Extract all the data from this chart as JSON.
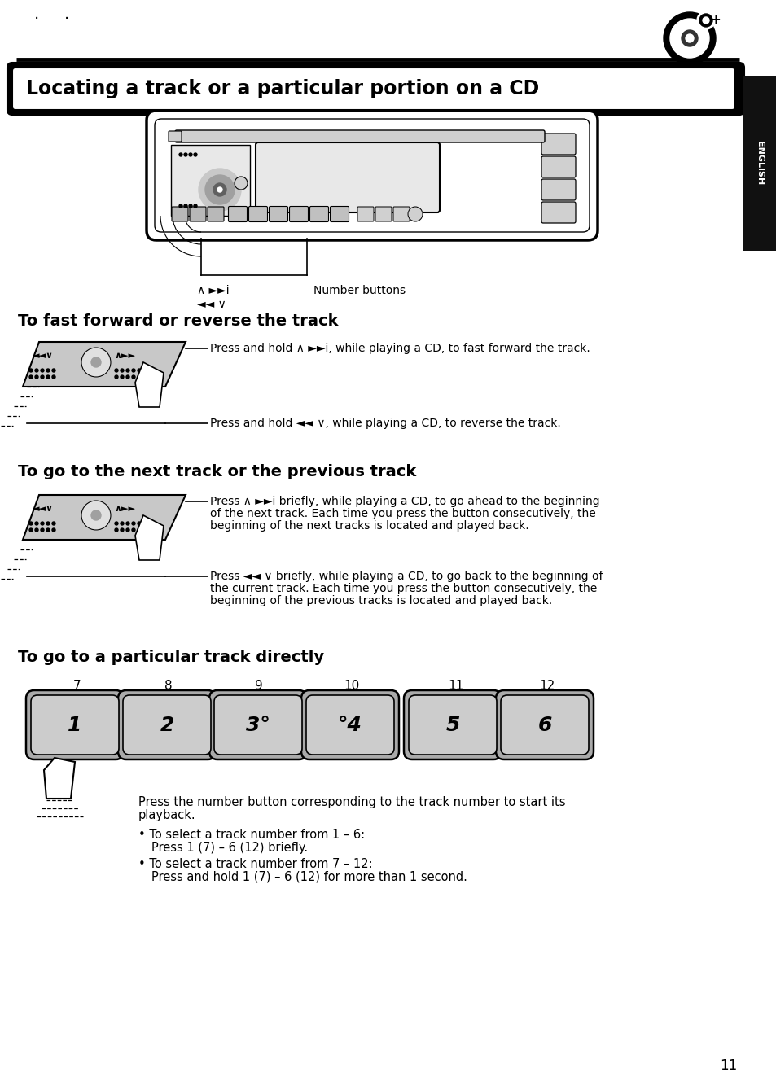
{
  "title": "Locating a track or a particular portion on a CD",
  "background_color": "#ffffff",
  "page_number": "11",
  "section1_title": "To fast forward or reverse the track",
  "section2_title": "To go to the next track or the previous track",
  "section3_title": "To go to a particular track directly",
  "legend_sym1": "∧ ►►i",
  "legend_label": "Number buttons",
  "legend_sym2": "◄◄ ∨",
  "ff_text": "Press and hold ∧ ►►i, while playing a CD, to fast forward the track.",
  "rev_text": "Press and hold ◄◄ ∨, while playing a CD, to reverse the track.",
  "next_text": [
    "Press ∧ ►►i briefly, while playing a CD, to go ahead to the beginning",
    "of the next track. Each time you press the button consecutively, the",
    "beginning of the next tracks is located and played back."
  ],
  "prev_text": [
    "Press ◄◄ ∨ briefly, while playing a CD, to go back to the beginning of",
    "the current track. Each time you press the button consecutively, the",
    "beginning of the previous tracks is located and played back."
  ],
  "button_numbers": [
    "7",
    "8",
    "9",
    "10",
    "11",
    "12"
  ],
  "button_labels": [
    "1",
    "2",
    "3°",
    "°4",
    "5",
    "6"
  ],
  "press_text1": "Press the number button corresponding to the track number to start its",
  "press_text2": "playback.",
  "bullet1_title": "To select a track number from 1 – 6:",
  "bullet1_text": "Press 1 (7) – 6 (12) briefly.",
  "bullet2_title": "To select a track number from 7 – 12:",
  "bullet2_text": "Press and hold 1 (7) – 6 (12) for more than 1 second."
}
